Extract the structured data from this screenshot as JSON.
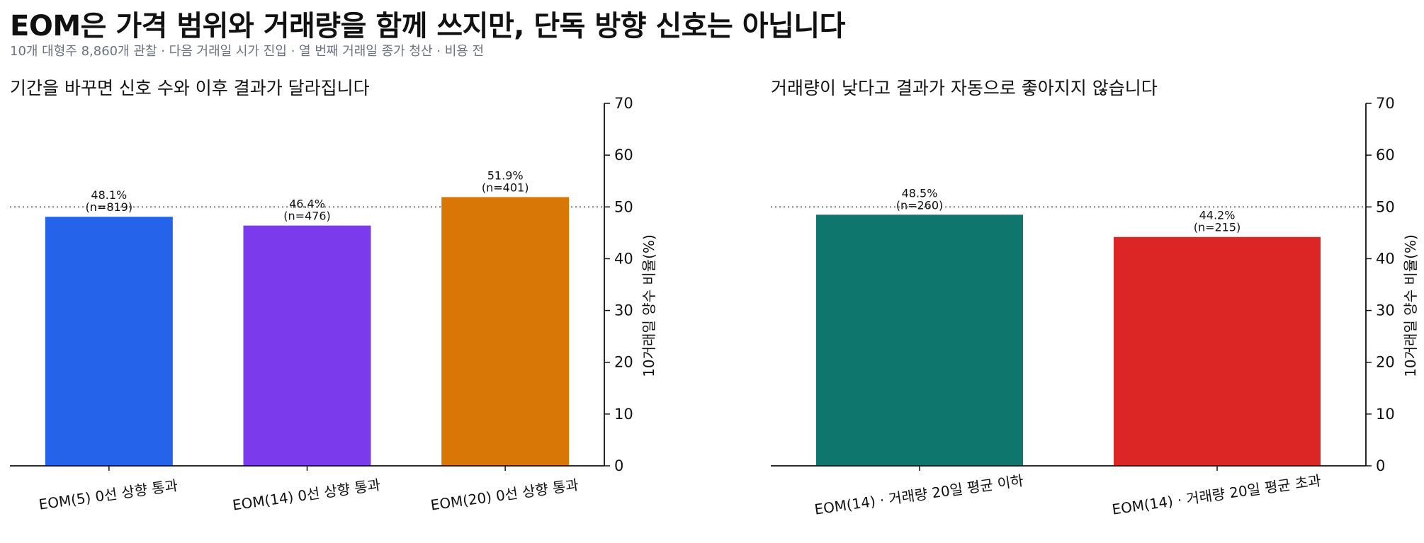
{
  "header": {
    "title": "EOM은 가격 범위와 거래량을 함께 쓰지만, 단독 방향 신호는 아닙니다",
    "subtitle": "10개 대형주 8,860개 관찰 · 다음 거래일 시가 진입 · 열 번째 거래일 종가 청산 · 비용 전"
  },
  "chart_data": [
    {
      "type": "bar",
      "title": "기간을 바꾸면 신호 수와 이후 결과가 달라집니다",
      "ylabel": "10거래일 양수 비율(%)",
      "ylim": [
        0,
        70
      ],
      "yticks": [
        "0",
        "10",
        "20",
        "30",
        "40",
        "50",
        "60",
        "70"
      ],
      "y_axis_side": "right",
      "reference_line": 50,
      "grid": false,
      "categories": [
        "EOM(5) 0선 상향 통과",
        "EOM(14) 0선 상향 통과",
        "EOM(20) 0선 상향 통과"
      ],
      "values": [
        48.1,
        46.4,
        51.9
      ],
      "value_labels": [
        "48.1%",
        "46.4%",
        "51.9%"
      ],
      "n_labels": [
        "(n=819)",
        "(n=476)",
        "(n=401)"
      ],
      "colors": [
        "#2563eb",
        "#7c3aed",
        "#d97706"
      ]
    },
    {
      "type": "bar",
      "title": "거래량이 낮다고 결과가 자동으로 좋아지지 않습니다",
      "ylabel": "10거래일 양수 비율(%)",
      "ylim": [
        0,
        70
      ],
      "yticks": [
        "0",
        "10",
        "20",
        "30",
        "40",
        "50",
        "60",
        "70"
      ],
      "y_axis_side": "right",
      "reference_line": 50,
      "grid": false,
      "categories": [
        "EOM(14) · 거래량 20일 평균 이하",
        "EOM(14) · 거래량 20일 평균 초과"
      ],
      "values": [
        48.5,
        44.2
      ],
      "value_labels": [
        "48.5%",
        "44.2%"
      ],
      "n_labels": [
        "(n=260)",
        "(n=215)"
      ],
      "colors": [
        "#0f766e",
        "#dc2626"
      ]
    }
  ]
}
